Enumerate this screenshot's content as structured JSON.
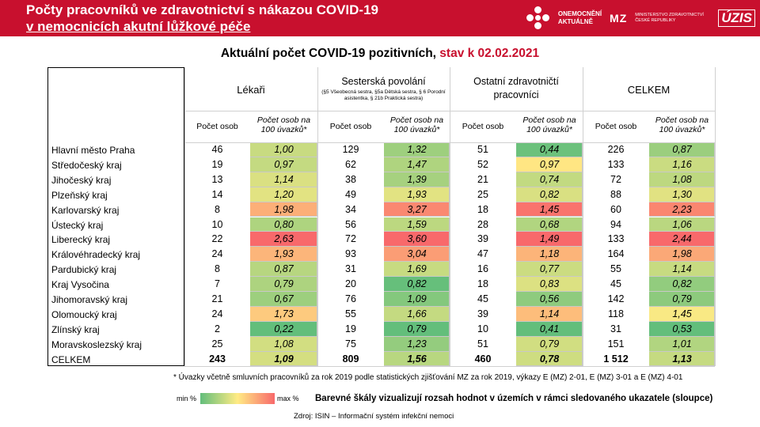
{
  "header": {
    "title_line1": "Počty pracovníků ve zdravotnictví s nákazou COVID-19",
    "title_line2": "v nemocnicích akutní lůžkové péče",
    "logo1_line1": "ONEMOCNĚNÍ",
    "logo1_line2": "AKTUÁLNĚ",
    "logo_mz": "MZ",
    "logo_mz_text": "MINISTERSTVO ZDRAVOTNICTVÍ ČESKÉ REPUBLIKY",
    "logo_uzis": "ÚZIS"
  },
  "subtitle": {
    "main": "Aktuální počet COVID-19 pozitivních, ",
    "date": "stav k 02.02.2021"
  },
  "groups": [
    {
      "label": "Lékaři",
      "note": ""
    },
    {
      "label": "Sesterská povolání",
      "note": "(§5 Všeobecná sestra, §5a Dětská sestra, § 6 Porodní asistentka, § 21b Praktická sestra)"
    },
    {
      "label": "Ostatní zdravotničtí pracovníci",
      "note": ""
    },
    {
      "label": "CELKEM",
      "note": ""
    }
  ],
  "subheaders": {
    "count": "Počet osob",
    "rate": "Počet osob na 100 úvazků*"
  },
  "regions": [
    "Hlavní město Praha",
    "Středočeský kraj",
    "Jihočeský kraj",
    "Plzeňský kraj",
    "Karlovarský kraj",
    "Ústecký kraj",
    "Liberecký kraj",
    "Královéhradecký kraj",
    "Pardubický kraj",
    "Kraj Vysočina",
    "Jihomoravský kraj",
    "Olomoucký kraj",
    "Zlínský kraj",
    "Moravskoslezský kraj",
    "CELKEM"
  ],
  "rows": [
    [
      "46",
      "1,00",
      "129",
      "1,32",
      "51",
      "0,44",
      "226",
      "0,87"
    ],
    [
      "19",
      "0,97",
      "62",
      "1,47",
      "52",
      "0,97",
      "133",
      "1,16"
    ],
    [
      "13",
      "1,14",
      "38",
      "1,39",
      "21",
      "0,74",
      "72",
      "1,08"
    ],
    [
      "14",
      "1,20",
      "49",
      "1,93",
      "25",
      "0,82",
      "88",
      "1,30"
    ],
    [
      "8",
      "1,98",
      "34",
      "3,27",
      "18",
      "1,45",
      "60",
      "2,23"
    ],
    [
      "10",
      "0,80",
      "56",
      "1,59",
      "28",
      "0,68",
      "94",
      "1,06"
    ],
    [
      "22",
      "2,63",
      "72",
      "3,60",
      "39",
      "1,49",
      "133",
      "2,44"
    ],
    [
      "24",
      "1,93",
      "93",
      "3,04",
      "47",
      "1,18",
      "164",
      "1,98"
    ],
    [
      "8",
      "0,87",
      "31",
      "1,69",
      "16",
      "0,77",
      "55",
      "1,14"
    ],
    [
      "7",
      "0,79",
      "20",
      "0,82",
      "18",
      "0,83",
      "45",
      "0,82"
    ],
    [
      "21",
      "0,67",
      "76",
      "1,09",
      "45",
      "0,56",
      "142",
      "0,79"
    ],
    [
      "24",
      "1,73",
      "55",
      "1,66",
      "39",
      "1,14",
      "118",
      "1,45"
    ],
    [
      "2",
      "0,22",
      "19",
      "0,79",
      "10",
      "0,41",
      "31",
      "0,53"
    ],
    [
      "25",
      "1,08",
      "75",
      "1,23",
      "51",
      "0,79",
      "151",
      "1,01"
    ],
    [
      "243",
      "1,09",
      "809",
      "1,56",
      "460",
      "0,78",
      "1 512",
      "1,13"
    ]
  ],
  "colors": {
    "green": "#63be7b",
    "yellow": "#ffeb84",
    "red": "#f8696b",
    "header_red": "#c8102e"
  },
  "footnote": "* Úvazky včetně smluvních pracovníků za rok 2019 podle statistických zjišťování MZ za rok 2019, výkazy E (MZ) 2-01, E (MZ) 3-01 a E (MZ) 4-01",
  "legend": {
    "min": "min %",
    "max": "max %"
  },
  "note": "Barevné škály vizualizují rozsah hodnot v územích v rámci sledovaného ukazatele (sloupce)",
  "source": "Zdroj: ISIN – Informační systém infekční nemoci"
}
